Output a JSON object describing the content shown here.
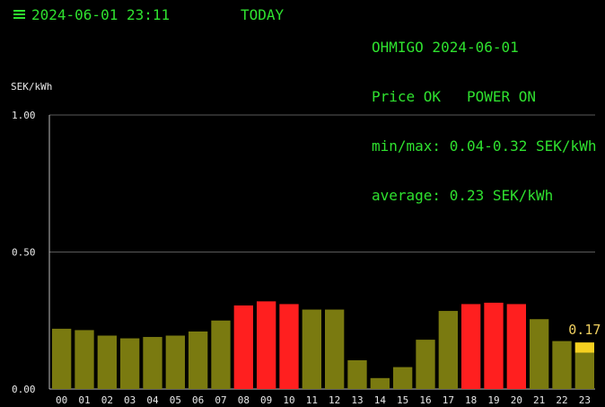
{
  "header": {
    "menu_icon": "menu-icon",
    "datetime": "2024-06-01 23:11",
    "day_label": "TODAY",
    "device_line": "OHMIGO 2024-06-01",
    "status_line": "Price OK   POWER ON",
    "minmax_line": "min/max: 0.04-0.32 SEK/kWh",
    "average_line": "average: 0.23 SEK/kWh"
  },
  "colors": {
    "normal": "#7a7a10",
    "high": "#ff1f1f",
    "current": "#f5d020",
    "text": "#2fe12f",
    "grid": "#5a5a5a"
  },
  "chart_data": {
    "type": "bar",
    "ylabel": "SEK/kWh",
    "ylim": [
      0,
      1.0
    ],
    "yticks": [
      "1.00",
      "0.50",
      "0.00"
    ],
    "ytick_values": [
      1.0,
      0.5,
      0.0
    ],
    "categories": [
      "00",
      "01",
      "02",
      "03",
      "04",
      "05",
      "06",
      "07",
      "08",
      "09",
      "10",
      "11",
      "12",
      "13",
      "14",
      "15",
      "16",
      "17",
      "18",
      "19",
      "20",
      "21",
      "22",
      "23"
    ],
    "values": [
      0.22,
      0.215,
      0.195,
      0.185,
      0.19,
      0.195,
      0.21,
      0.25,
      0.305,
      0.32,
      0.31,
      0.29,
      0.29,
      0.105,
      0.04,
      0.08,
      0.18,
      0.285,
      0.31,
      0.315,
      0.31,
      0.255,
      0.175,
      0.17
    ],
    "levels": [
      "normal",
      "normal",
      "normal",
      "normal",
      "normal",
      "normal",
      "normal",
      "normal",
      "high",
      "high",
      "high",
      "normal",
      "normal",
      "normal",
      "normal",
      "normal",
      "normal",
      "normal",
      "high",
      "high",
      "high",
      "normal",
      "normal",
      "current"
    ],
    "current_progress": 0.22,
    "current_index": 23,
    "current_label": "0.17",
    "grid": true
  }
}
